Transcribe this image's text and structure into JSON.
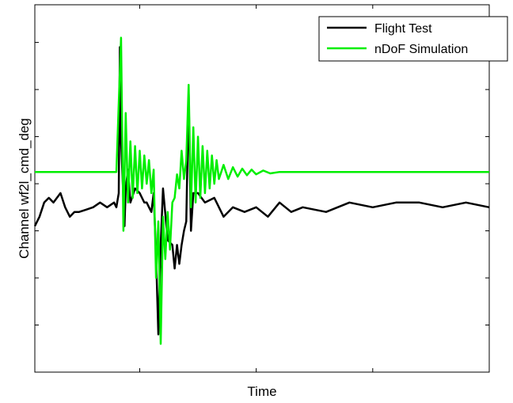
{
  "chart_data": {
    "type": "line",
    "title": "",
    "xlabel": "Time",
    "ylabel": "Channel wf2l_cmd_deg",
    "x_tick_labels": "none",
    "y_tick_labels": "none",
    "x_ticks": [
      5,
      10,
      15
    ],
    "y_ticks": [
      1,
      2,
      3,
      4,
      5,
      6,
      7
    ],
    "xlim": [
      0.5,
      20
    ],
    "ylim": [
      0,
      7.8
    ],
    "grid": false,
    "legend": "top-right",
    "series": [
      {
        "name": "Flight Test",
        "color": "#000000",
        "x": [
          0.5,
          0.7,
          0.9,
          1.1,
          1.3,
          1.6,
          1.8,
          2.0,
          2.2,
          2.4,
          2.7,
          3.0,
          3.3,
          3.6,
          3.9,
          4.0,
          4.1,
          4.15,
          4.2,
          4.3,
          4.35,
          4.4,
          4.5,
          4.6,
          4.8,
          5.0,
          5.1,
          5.2,
          5.3,
          5.4,
          5.5,
          5.6,
          5.7,
          5.8,
          5.9,
          6.0,
          6.2,
          6.4,
          6.5,
          6.6,
          6.7,
          6.8,
          6.9,
          7.0,
          7.1,
          7.2,
          7.3,
          7.5,
          7.8,
          8.2,
          8.6,
          9.0,
          9.5,
          10.0,
          10.5,
          11.0,
          11.5,
          12.0,
          13.0,
          14.0,
          15.0,
          16.0,
          17.0,
          18.0,
          19.0,
          20.0
        ],
        "y": [
          3.1,
          3.3,
          3.6,
          3.7,
          3.6,
          3.8,
          3.5,
          3.3,
          3.4,
          3.4,
          3.45,
          3.5,
          3.6,
          3.5,
          3.6,
          3.5,
          3.8,
          6.9,
          4.9,
          3.7,
          3.1,
          3.9,
          4.3,
          3.6,
          3.9,
          3.8,
          3.7,
          3.6,
          3.6,
          3.5,
          3.4,
          3.8,
          2.5,
          0.8,
          2.7,
          3.9,
          2.8,
          2.7,
          2.2,
          2.7,
          2.3,
          2.7,
          3.0,
          3.2,
          5.9,
          3.0,
          3.8,
          3.8,
          3.6,
          3.7,
          3.3,
          3.5,
          3.4,
          3.5,
          3.3,
          3.6,
          3.4,
          3.5,
          3.4,
          3.6,
          3.5,
          3.6,
          3.6,
          3.5,
          3.6,
          3.5
        ]
      },
      {
        "name": "nDoF Simulation",
        "color": "#00ee00",
        "x": [
          0.5,
          4.0,
          4.2,
          4.3,
          4.4,
          4.5,
          4.6,
          4.7,
          4.8,
          4.9,
          5.0,
          5.1,
          5.2,
          5.3,
          5.4,
          5.5,
          5.6,
          5.7,
          5.8,
          5.9,
          6.0,
          6.1,
          6.2,
          6.3,
          6.4,
          6.5,
          6.6,
          6.7,
          6.8,
          6.9,
          7.0,
          7.1,
          7.2,
          7.3,
          7.4,
          7.5,
          7.6,
          7.7,
          7.8,
          7.9,
          8.0,
          8.1,
          8.2,
          8.3,
          8.4,
          8.6,
          8.8,
          9.0,
          9.2,
          9.4,
          9.6,
          9.8,
          10.0,
          10.3,
          10.6,
          11.0,
          12.0,
          14.0,
          16.0,
          18.0,
          20.0
        ],
        "y": [
          4.25,
          4.25,
          7.1,
          3.0,
          5.5,
          3.6,
          4.9,
          3.7,
          4.8,
          3.8,
          4.7,
          3.9,
          4.6,
          4.0,
          4.5,
          3.8,
          4.3,
          2.0,
          3.2,
          0.6,
          3.3,
          2.4,
          3.4,
          2.6,
          3.6,
          3.7,
          4.2,
          3.9,
          4.7,
          4.1,
          4.5,
          6.1,
          3.5,
          5.2,
          3.6,
          5.0,
          3.7,
          4.8,
          3.8,
          4.7,
          3.9,
          4.6,
          4.0,
          4.5,
          4.1,
          4.4,
          4.1,
          4.35,
          4.15,
          4.32,
          4.18,
          4.3,
          4.2,
          4.28,
          4.22,
          4.25,
          4.25,
          4.25,
          4.25,
          4.25,
          4.25
        ]
      }
    ]
  }
}
